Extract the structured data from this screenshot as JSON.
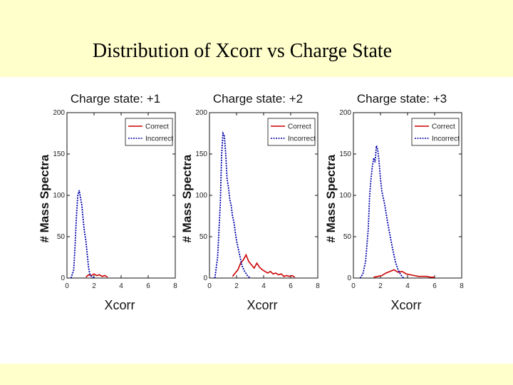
{
  "slide": {
    "title": "Distribution of Xcorr vs Charge State"
  },
  "colors": {
    "correct": "#cc0000",
    "incorrect": "#0000aa",
    "background": "#ffffcc"
  },
  "chart_data": [
    {
      "type": "line",
      "title": "Charge state: +1",
      "xlabel": "Xcorr",
      "ylabel": "# Mass Spectra",
      "xlim": [
        0,
        8
      ],
      "ylim": [
        0,
        200
      ],
      "xticks": [
        0,
        2,
        4,
        6,
        8
      ],
      "yticks": [
        0,
        50,
        100,
        150,
        200
      ],
      "xtick_labels": [
        "0",
        "2",
        "4",
        "6",
        "8"
      ],
      "ytick_labels": [
        "0",
        "50",
        "100",
        "150",
        "200"
      ],
      "legend": [
        "Correct",
        "Incorrect"
      ],
      "legend_position": "top-right",
      "series": [
        {
          "name": "Correct",
          "x": [
            1.4,
            1.6,
            1.8,
            2.0,
            2.2,
            2.4,
            2.6,
            2.8,
            3.0
          ],
          "y": [
            1,
            4,
            3,
            5,
            3,
            4,
            2,
            3,
            1
          ]
        },
        {
          "name": "Incorrect",
          "x": [
            0.3,
            0.5,
            0.6,
            0.7,
            0.8,
            0.9,
            1.0,
            1.1,
            1.2,
            1.3,
            1.4,
            1.5,
            1.6,
            1.7,
            1.8,
            1.9,
            2.0
          ],
          "y": [
            0,
            10,
            40,
            75,
            100,
            106,
            97,
            88,
            70,
            55,
            45,
            28,
            12,
            4,
            2,
            1,
            0
          ]
        }
      ]
    },
    {
      "type": "line",
      "title": "Charge state: +2",
      "xlabel": "Xcorr",
      "ylabel": "# Mass Spectra",
      "xlim": [
        0,
        8
      ],
      "ylim": [
        0,
        200
      ],
      "xticks": [
        0,
        2,
        4,
        6,
        8
      ],
      "yticks": [
        0,
        50,
        100,
        150,
        200
      ],
      "xtick_labels": [
        "0",
        "2",
        "4",
        "6",
        "8"
      ],
      "ytick_labels": [
        "0",
        "50",
        "100",
        "150",
        "200"
      ],
      "legend": [
        "Correct",
        "Incorrect"
      ],
      "legend_position": "top-right",
      "series": [
        {
          "name": "Correct",
          "x": [
            1.7,
            1.9,
            2.1,
            2.3,
            2.5,
            2.7,
            2.9,
            3.1,
            3.3,
            3.5,
            3.7,
            3.9,
            4.1,
            4.3,
            4.5,
            4.7,
            4.9,
            5.1,
            5.3,
            5.5,
            5.7,
            5.9,
            6.1,
            6.3
          ],
          "y": [
            2,
            6,
            10,
            18,
            22,
            28,
            20,
            16,
            12,
            18,
            13,
            10,
            8,
            6,
            8,
            5,
            6,
            4,
            5,
            2,
            3,
            2,
            3,
            1
          ]
        },
        {
          "name": "Incorrect",
          "x": [
            0.4,
            0.6,
            0.8,
            0.9,
            1.0,
            1.1,
            1.2,
            1.3,
            1.4,
            1.5,
            1.6,
            1.7,
            1.8,
            2.0,
            2.2,
            2.4,
            2.6,
            2.8,
            3.0
          ],
          "y": [
            0,
            25,
            90,
            150,
            175,
            172,
            150,
            120,
            110,
            95,
            88,
            75,
            68,
            45,
            30,
            15,
            8,
            3,
            0
          ]
        }
      ]
    },
    {
      "type": "line",
      "title": "Charge state: +3",
      "xlabel": "Xcorr",
      "ylabel": "# Mass Spectra",
      "xlim": [
        0,
        8
      ],
      "ylim": [
        0,
        200
      ],
      "xticks": [
        0,
        2,
        4,
        6,
        8
      ],
      "yticks": [
        0,
        50,
        100,
        150,
        200
      ],
      "xtick_labels": [
        "0",
        "2",
        "4",
        "6",
        "8"
      ],
      "ytick_labels": [
        "0",
        "50",
        "100",
        "150",
        "200"
      ],
      "legend": [
        "Correct",
        "Incorrect"
      ],
      "legend_position": "top-right",
      "series": [
        {
          "name": "Correct",
          "x": [
            1.5,
            1.8,
            2.1,
            2.4,
            2.7,
            3.0,
            3.3,
            3.6,
            3.9,
            4.2,
            4.5,
            4.8,
            5.1,
            5.4,
            5.7,
            6.0
          ],
          "y": [
            1,
            2,
            3,
            6,
            8,
            10,
            7,
            8,
            5,
            4,
            3,
            2,
            2,
            2,
            1,
            1
          ]
        },
        {
          "name": "Incorrect",
          "x": [
            0.5,
            0.7,
            0.9,
            1.1,
            1.2,
            1.3,
            1.4,
            1.5,
            1.6,
            1.7,
            1.8,
            1.9,
            2.0,
            2.1,
            2.3,
            2.5,
            2.7,
            2.9,
            3.1,
            3.3,
            3.5,
            3.7
          ],
          "y": [
            0,
            5,
            20,
            60,
            100,
            120,
            135,
            145,
            140,
            160,
            155,
            140,
            120,
            105,
            90,
            70,
            52,
            35,
            20,
            10,
            4,
            0
          ]
        }
      ]
    }
  ]
}
